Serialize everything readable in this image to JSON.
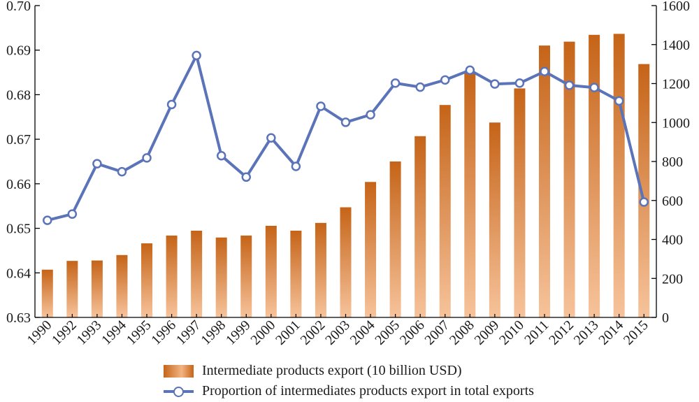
{
  "chart_data": {
    "type": "bar+line",
    "categories": [
      "1990",
      "1992",
      "1993",
      "1994",
      "1995",
      "1996",
      "1997",
      "1998",
      "1999",
      "2000",
      "2001",
      "2002",
      "2003",
      "2004",
      "2005",
      "2006",
      "2007",
      "2008",
      "2009",
      "2010",
      "2011",
      "2012",
      "2013",
      "2014",
      "2015"
    ],
    "series": [
      {
        "name": "Intermediate products export (10 billion USD)",
        "type": "bar",
        "axis": "right",
        "values": [
          245,
          290,
          292,
          320,
          380,
          420,
          445,
          410,
          420,
          470,
          445,
          485,
          565,
          695,
          800,
          930,
          1090,
          1260,
          1000,
          1175,
          1395,
          1415,
          1450,
          1455,
          1300
        ]
      },
      {
        "name": "Proportion of intermediates products export in total exports",
        "type": "line",
        "axis": "left",
        "values": [
          0.6518,
          0.6532,
          0.6645,
          0.6627,
          0.6658,
          0.6778,
          0.6888,
          0.6663,
          0.6615,
          0.6703,
          0.6639,
          0.6774,
          0.6738,
          0.6755,
          0.6826,
          0.6817,
          0.6833,
          0.6855,
          0.6824,
          0.6826,
          0.6852,
          0.6821,
          0.6816,
          0.6786,
          0.6559
        ]
      }
    ],
    "y_left": {
      "lim": [
        0.63,
        0.7
      ],
      "ticks": [
        "0.63",
        "0.64",
        "0.65",
        "0.66",
        "0.67",
        "0.68",
        "0.69",
        "0.70"
      ]
    },
    "y_right": {
      "lim": [
        0,
        1600
      ],
      "ticks": [
        "0",
        "200",
        "400",
        "600",
        "800",
        "1000",
        "1200",
        "1400",
        "1600"
      ]
    },
    "grid": false,
    "legend_position": "bottom-center",
    "colors": {
      "bar_dark": "#c56418",
      "bar_light": "#f3b483",
      "line": "#5b73b8",
      "marker_fill": "#ffffff",
      "axis": "#000000"
    }
  },
  "legend": {
    "bar_label": "Intermediate products export (10 billion USD)",
    "line_label": "Proportion of intermediates products export in total exports"
  }
}
